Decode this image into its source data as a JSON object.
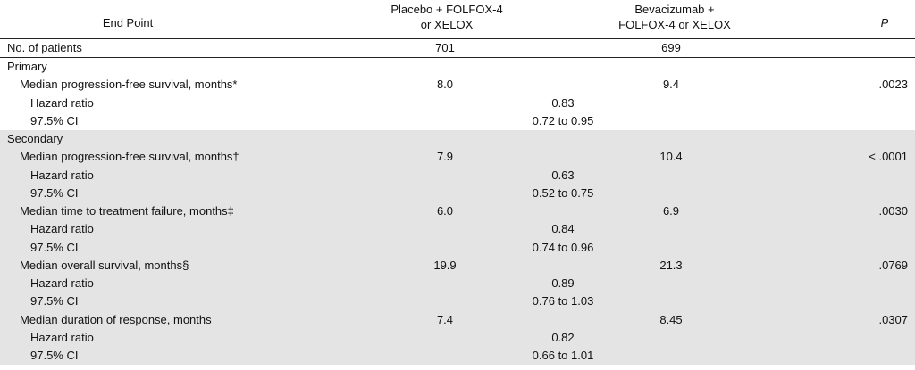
{
  "header": {
    "endpoint": "End Point",
    "placebo_line1": "Placebo + FOLFOX-4",
    "placebo_line2": "or XELOX",
    "bev_line1": "Bevacizumab +",
    "bev_line2": "FOLFOX-4 or XELOX",
    "p": "P"
  },
  "patients": {
    "label": "No. of patients",
    "placebo": "701",
    "bev": "699"
  },
  "rows": [
    {
      "label": "Primary",
      "level": 0,
      "shade": false
    },
    {
      "label": "Median progression-free survival, months*",
      "level": 1,
      "placebo": "8.0",
      "bev": "9.4",
      "p": ".0023",
      "shade": false
    },
    {
      "label": "Hazard ratio",
      "level": 2,
      "hr": "0.83",
      "shade": false
    },
    {
      "label": "97.5% CI",
      "level": 2,
      "hr": "0.72 to 0.95",
      "shade": false
    },
    {
      "label": "Secondary",
      "level": 0,
      "shade": true
    },
    {
      "label": "Median progression-free survival, months†",
      "level": 1,
      "placebo": "7.9",
      "bev": "10.4",
      "p": "< .0001",
      "shade": true
    },
    {
      "label": "Hazard ratio",
      "level": 2,
      "hr": "0.63",
      "shade": true
    },
    {
      "label": "97.5% CI",
      "level": 2,
      "hr": "0.52 to 0.75",
      "shade": true
    },
    {
      "label": "Median time to treatment failure, months‡",
      "level": 1,
      "placebo": "6.0",
      "bev": "6.9",
      "p": ".0030",
      "shade": true
    },
    {
      "label": "Hazard ratio",
      "level": 2,
      "hr": "0.84",
      "shade": true
    },
    {
      "label": "97.5% CI",
      "level": 2,
      "hr": "0.74 to 0.96",
      "shade": true
    },
    {
      "label": "Median overall survival, months§",
      "level": 1,
      "placebo": "19.9",
      "bev": "21.3",
      "p": ".0769",
      "shade": true
    },
    {
      "label": "Hazard ratio",
      "level": 2,
      "hr": "0.89",
      "shade": true
    },
    {
      "label": "97.5% CI",
      "level": 2,
      "hr": "0.76 to 1.03",
      "shade": true
    },
    {
      "label": "Median duration of response, months",
      "level": 1,
      "placebo": "7.4",
      "bev": "8.45",
      "p": ".0307",
      "shade": true
    },
    {
      "label": "Hazard ratio",
      "level": 2,
      "hr": "0.82",
      "shade": true
    },
    {
      "label": "97.5% CI",
      "level": 2,
      "hr": "0.66 to 1.01",
      "shade": true
    }
  ]
}
